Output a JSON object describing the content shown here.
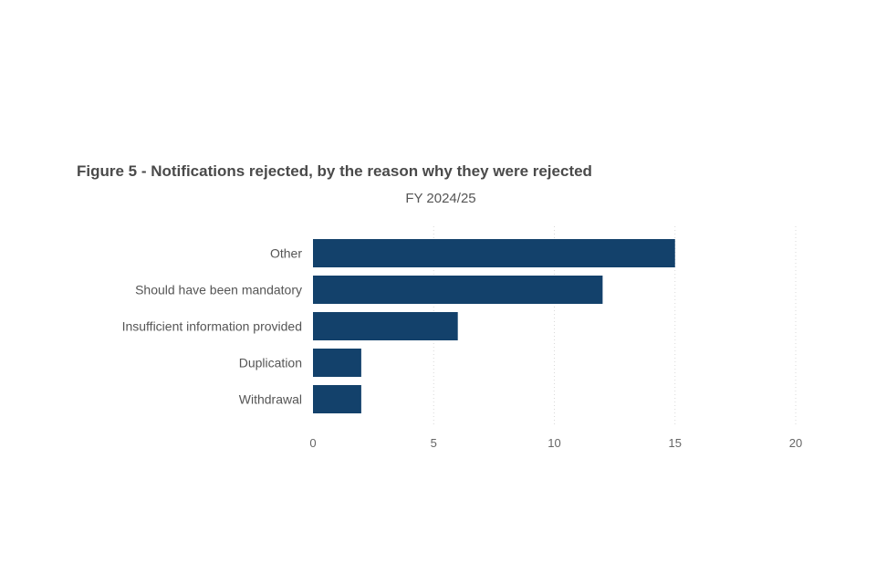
{
  "chart_data": {
    "type": "bar",
    "orientation": "horizontal",
    "title": "Figure 5 - Notifications rejected, by the reason why they were rejected",
    "subtitle": "FY 2024/25",
    "categories": [
      "Other",
      "Should have been mandatory",
      "Insufficient information provided",
      "Duplication",
      "Withdrawal"
    ],
    "values": [
      15,
      12,
      6,
      2,
      2
    ],
    "xlim": [
      0,
      20
    ],
    "xticks": [
      0,
      5,
      10,
      15,
      20
    ],
    "bar_color": "#13416b",
    "grid_color": "#d9d9d9",
    "grid": true,
    "grid_style": "dotted",
    "legend": "none"
  }
}
